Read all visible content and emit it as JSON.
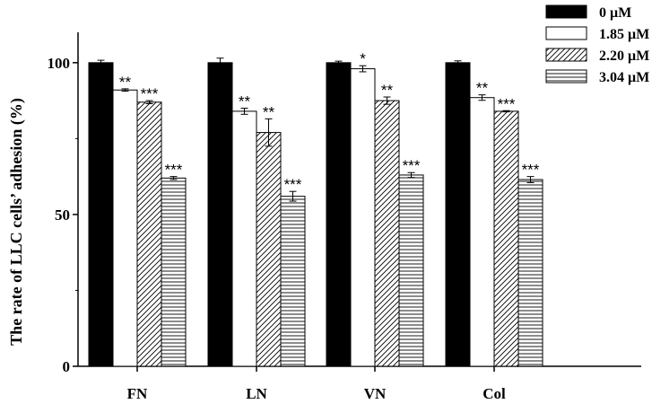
{
  "chart_data": {
    "type": "bar",
    "title": "",
    "xlabel": "",
    "ylabel": "The rate of LLC cells’ adhesion (%)",
    "ylim": [
      0,
      110
    ],
    "yticks": [
      0,
      50,
      100
    ],
    "categories": [
      "FN",
      "LN",
      "VN",
      "Col"
    ],
    "legend_position": "top-right",
    "series": [
      {
        "name": "0 μM",
        "fill": "solid",
        "color": "#000000",
        "values": [
          100,
          100,
          100,
          100
        ],
        "errors": [
          0.8,
          1.5,
          0.5,
          0.6
        ],
        "significance": [
          "",
          "",
          "",
          ""
        ]
      },
      {
        "name": "1.85 μM",
        "fill": "blank",
        "color": "#ffffff",
        "values": [
          91,
          84,
          98,
          88.5
        ],
        "errors": [
          0.4,
          1.0,
          1.0,
          0.9
        ],
        "significance": [
          "**",
          "**",
          "*",
          "**"
        ]
      },
      {
        "name": "2.20 μM",
        "fill": "diagonal",
        "color": "#000000",
        "values": [
          87,
          77,
          87.5,
          84
        ],
        "errors": [
          0.5,
          4.5,
          1.2,
          0.2
        ],
        "significance": [
          "***",
          "**",
          "**",
          "***"
        ]
      },
      {
        "name": "3.04 μM",
        "fill": "horizontal",
        "color": "#000000",
        "values": [
          62,
          56,
          63,
          61.5
        ],
        "errors": [
          0.5,
          1.6,
          0.8,
          1.0
        ],
        "significance": [
          "***",
          "***",
          "***",
          "***"
        ]
      }
    ]
  }
}
